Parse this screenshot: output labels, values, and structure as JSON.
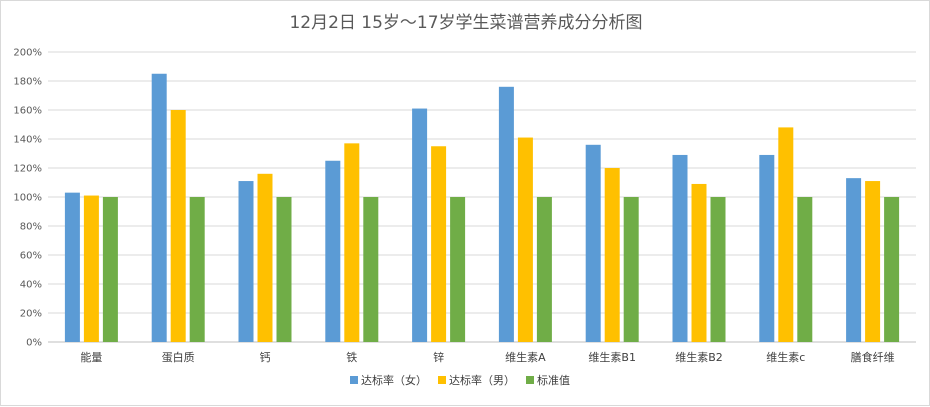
{
  "chart_data": {
    "type": "bar",
    "title": "12月2日 15岁～17岁学生菜谱营养成分分析图",
    "xlabel": "",
    "ylabel": "",
    "categories": [
      "能量",
      "蛋白质",
      "钙",
      "铁",
      "锌",
      "维生素A",
      "维生素B1",
      "维生素B2",
      "维生素c",
      "膳食纤维"
    ],
    "series": [
      {
        "name": "达标率（女）",
        "color": "#5b9bd5",
        "values": [
          1.03,
          1.85,
          1.11,
          1.25,
          1.61,
          1.76,
          1.36,
          1.29,
          1.29,
          1.13
        ]
      },
      {
        "name": "达标率（男）",
        "color": "#ffc000",
        "values": [
          1.01,
          1.6,
          1.16,
          1.37,
          1.35,
          1.41,
          1.2,
          1.09,
          1.48,
          1.11
        ]
      },
      {
        "name": "标准值",
        "color": "#70ad47",
        "values": [
          1.0,
          1.0,
          1.0,
          1.0,
          1.0,
          1.0,
          1.0,
          1.0,
          1.0,
          1.0
        ]
      }
    ],
    "ylim": [
      0,
      2.0
    ],
    "yticks": [
      "0%",
      "20%",
      "40%",
      "60%",
      "80%",
      "100%",
      "120%",
      "140%",
      "160%",
      "180%",
      "200%"
    ],
    "grid": true,
    "legend": "bottom-center"
  }
}
